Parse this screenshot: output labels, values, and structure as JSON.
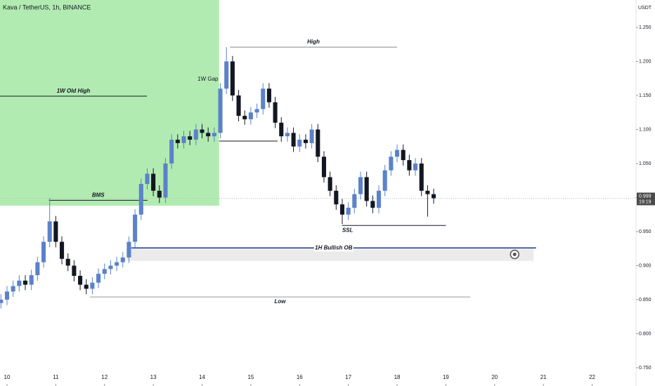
{
  "chart_data": {
    "type": "candlestick",
    "title": "Kava / TetherUS, 1h, BINANCE",
    "y_unit": "USDT",
    "xlim": [
      9.856,
      22.9
    ],
    "ylim": [
      0.7232,
      1.2902
    ],
    "xticks": [
      10,
      11,
      12,
      13,
      14,
      15,
      16,
      17,
      18,
      19,
      20,
      21,
      22
    ],
    "yticks": [
      {
        "value": 0.75,
        "label": "0.750"
      },
      {
        "value": 0.8,
        "label": "0.800"
      },
      {
        "value": 0.85,
        "label": "0.850"
      },
      {
        "value": 0.9,
        "label": "0.900"
      },
      {
        "value": 0.95,
        "label": "0.950"
      },
      {
        "value": 1.0,
        "label": "1.000"
      },
      {
        "value": 1.05,
        "label": "1.050"
      },
      {
        "value": 1.1,
        "label": "1.100"
      },
      {
        "value": 1.15,
        "label": "1.150"
      },
      {
        "value": 1.2,
        "label": "1.200"
      },
      {
        "value": 1.25,
        "label": "1.250"
      }
    ],
    "up_color": "#5b82c9",
    "down_color": "#131722",
    "x": [
      9.875,
      10,
      10.125,
      10.25,
      10.375,
      10.5,
      10.625,
      10.75,
      10.875,
      11,
      11.125,
      11.25,
      11.375,
      11.5,
      11.625,
      11.75,
      11.875,
      12,
      12.125,
      12.25,
      12.375,
      12.5,
      12.625,
      12.75,
      12.875,
      13,
      13.125,
      13.25,
      13.375,
      13.5,
      13.625,
      13.75,
      13.875,
      14,
      14.125,
      14.25,
      14.375,
      14.5,
      14.625,
      14.75,
      14.875,
      15,
      15.125,
      15.25,
      15.375,
      15.5,
      15.625,
      15.75,
      15.875,
      16,
      16.125,
      16.25,
      16.375,
      16.5,
      16.625,
      16.75,
      16.875,
      17,
      17.125,
      17.25,
      17.375,
      17.5,
      17.625,
      17.75,
      17.875,
      18,
      18.125,
      18.25,
      18.375,
      18.5,
      18.625,
      18.75
    ],
    "open": [
      0.845,
      0.85,
      0.862,
      0.87,
      0.878,
      0.872,
      0.886,
      0.905,
      0.935,
      0.965,
      0.935,
      0.91,
      0.9,
      0.885,
      0.872,
      0.866,
      0.875,
      0.888,
      0.895,
      0.9,
      0.905,
      0.912,
      0.935,
      0.975,
      1.02,
      1.035,
      1.01,
      1.0,
      1.05,
      1.085,
      1.08,
      1.09,
      1.085,
      1.1,
      1.095,
      1.09,
      1.095,
      1.16,
      1.2,
      1.15,
      1.12,
      1.115,
      1.125,
      1.13,
      1.16,
      1.14,
      1.11,
      1.09,
      1.095,
      1.075,
      1.085,
      1.08,
      1.1,
      1.06,
      1.03,
      1.01,
      0.99,
      0.975,
      0.985,
      1.005,
      1.03,
      0.995,
      0.985,
      1.01,
      1.04,
      1.06,
      1.07,
      1.055,
      1.04,
      1.05,
      1.01,
      1.005
    ],
    "high": [
      0.858,
      0.87,
      0.878,
      0.886,
      0.886,
      0.894,
      0.913,
      0.943,
      0.999,
      0.973,
      0.943,
      0.918,
      0.908,
      0.893,
      0.88,
      0.883,
      0.896,
      0.903,
      0.908,
      0.913,
      0.92,
      0.943,
      0.983,
      1.028,
      1.043,
      1.043,
      1.018,
      1.058,
      1.093,
      1.093,
      1.098,
      1.098,
      1.108,
      1.108,
      1.103,
      1.103,
      1.168,
      1.221,
      1.208,
      1.158,
      1.128,
      1.133,
      1.138,
      1.168,
      1.168,
      1.148,
      1.118,
      1.103,
      1.103,
      1.093,
      1.093,
      1.108,
      1.108,
      1.068,
      1.038,
      1.018,
      0.998,
      0.993,
      1.013,
      1.038,
      1.038,
      1.003,
      1.018,
      1.048,
      1.068,
      1.078,
      1.078,
      1.063,
      1.058,
      1.058,
      1.018,
      1.013
    ],
    "low": [
      0.837,
      0.842,
      0.854,
      0.862,
      0.864,
      0.864,
      0.878,
      0.897,
      0.927,
      0.927,
      0.902,
      0.892,
      0.877,
      0.864,
      0.858,
      0.858,
      0.867,
      0.88,
      0.887,
      0.892,
      0.897,
      0.904,
      0.927,
      0.967,
      1.012,
      1.002,
      0.992,
      0.992,
      1.042,
      1.072,
      1.072,
      1.077,
      1.077,
      1.087,
      1.082,
      1.082,
      1.087,
      1.152,
      1.142,
      1.112,
      1.107,
      1.107,
      1.117,
      1.122,
      1.132,
      1.102,
      1.082,
      1.082,
      1.067,
      1.067,
      1.072,
      1.072,
      1.052,
      1.022,
      1.002,
      0.982,
      0.961,
      0.967,
      0.977,
      0.997,
      0.987,
      0.977,
      0.977,
      1.002,
      1.032,
      1.052,
      1.047,
      1.032,
      1.032,
      1.002,
      0.972,
      0.991
    ],
    "close": [
      0.85,
      0.862,
      0.87,
      0.878,
      0.872,
      0.886,
      0.905,
      0.935,
      0.965,
      0.935,
      0.91,
      0.9,
      0.885,
      0.872,
      0.866,
      0.875,
      0.888,
      0.895,
      0.9,
      0.905,
      0.912,
      0.935,
      0.975,
      1.02,
      1.035,
      1.01,
      1.0,
      1.05,
      1.085,
      1.08,
      1.09,
      1.085,
      1.1,
      1.095,
      1.09,
      1.095,
      1.16,
      1.2,
      1.15,
      1.12,
      1.115,
      1.125,
      1.13,
      1.16,
      1.14,
      1.11,
      1.09,
      1.095,
      1.075,
      1.085,
      1.08,
      1.1,
      1.06,
      1.03,
      1.01,
      0.99,
      0.975,
      0.985,
      1.005,
      1.03,
      0.995,
      0.985,
      1.01,
      1.04,
      1.06,
      1.07,
      1.055,
      1.04,
      1.05,
      1.01,
      1.005,
      0.999
    ],
    "last_price": {
      "value": 0.999,
      "label": "0.999"
    },
    "countdown": "19:19",
    "zones": [
      {
        "x": [
          9.856,
          14.35
        ],
        "y": [
          0.988,
          1.2902
        ],
        "color": "#b2ebb2"
      },
      {
        "x": [
          12.45,
          20.8
        ],
        "y": [
          0.907,
          0.926
        ],
        "color": "#ebebeb"
      }
    ],
    "annotations": [
      {
        "label": "1W Old High",
        "x": [
          9.856,
          12.87
        ],
        "y": 1.149,
        "color": "#131722"
      },
      {
        "label": "BMS",
        "x": [
          10.86,
          12.88
        ],
        "y": 0.996,
        "color": "#131722"
      },
      {
        "label": "High",
        "x": [
          14.57,
          18.0
        ],
        "y": 1.221,
        "color": "#888888"
      },
      {
        "x": [
          14.35,
          15.55
        ],
        "y": 1.083,
        "color": "#131722"
      },
      {
        "label": "SSL",
        "x": [
          16.87,
          19.0
        ],
        "y": 0.959,
        "color": "#131722"
      },
      {
        "label": "1H Bullish OB",
        "x": [
          12.55,
          20.85
        ],
        "y": 0.926,
        "color": "#1c3b8c"
      },
      {
        "label": "Low",
        "x": [
          11.7,
          19.5
        ],
        "y": 0.854,
        "color": "#999999"
      }
    ],
    "text_notes": [
      {
        "label": "1W Gap",
        "x": 14.12,
        "y": 1.174
      }
    ]
  }
}
